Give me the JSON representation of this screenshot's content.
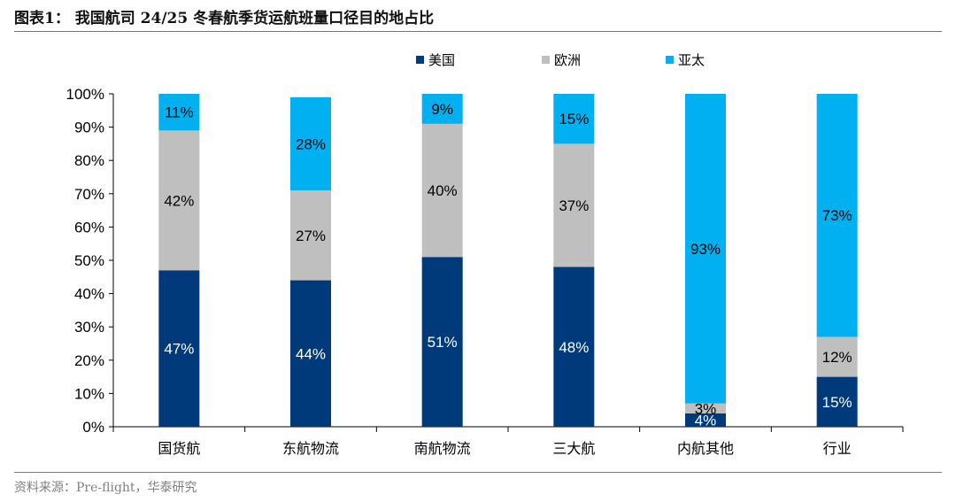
{
  "figure": {
    "title": "图表1：  我国航司 24/25 冬春航季货运航班量口径目的地占比",
    "source": "资料来源：Pre-flight，华泰研究"
  },
  "chart_data": {
    "type": "bar",
    "stacked": true,
    "categories": [
      "国货航",
      "东航物流",
      "南航物流",
      "三大航",
      "内航其他",
      "行业"
    ],
    "series": [
      {
        "name": "美国",
        "color": "#003a7a",
        "values": [
          47,
          44,
          51,
          48,
          4,
          15
        ],
        "labels": [
          "47%",
          "44%",
          "51%",
          "48%",
          "4%",
          "15%"
        ]
      },
      {
        "name": "欧洲",
        "color": "#bfbfbf",
        "values": [
          42,
          27,
          40,
          37,
          3,
          12
        ],
        "labels": [
          "42%",
          "27%",
          "40%",
          "37%",
          "3%",
          "12%"
        ]
      },
      {
        "name": "亚太",
        "color": "#00b0f0",
        "values": [
          11,
          28,
          9,
          15,
          93,
          73
        ],
        "labels": [
          "11%",
          "28%",
          "9%",
          "15%",
          "93%",
          "73%"
        ]
      }
    ],
    "yticks": [
      "0%",
      "10%",
      "20%",
      "30%",
      "40%",
      "50%",
      "60%",
      "70%",
      "80%",
      "90%",
      "100%"
    ],
    "ylim": [
      0,
      100
    ],
    "legend_position": "top",
    "grid": false
  }
}
